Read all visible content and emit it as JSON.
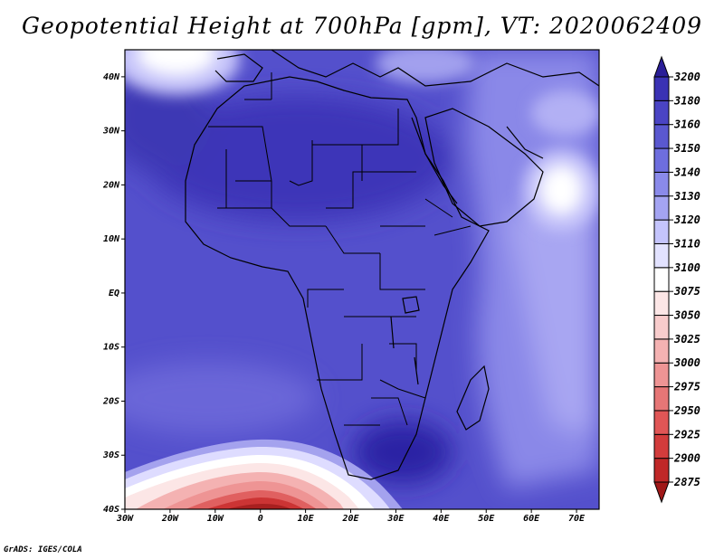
{
  "title": "Geopotential Height at 700hPa [gpm], VT: 2020062409",
  "credit": "GrADS: IGES/COLA",
  "chart_data": {
    "type": "heatmap",
    "variable": "Geopotential Height",
    "level": "700hPa",
    "units": "gpm",
    "valid_time": "2020062409",
    "lon_range": [
      -30,
      75
    ],
    "lat_range": [
      -40,
      45
    ],
    "x_ticks": [
      "30W",
      "20W",
      "10W",
      "0",
      "10E",
      "20E",
      "30E",
      "40E",
      "50E",
      "60E",
      "70E"
    ],
    "x_tick_values": [
      -30,
      -20,
      -10,
      0,
      10,
      20,
      30,
      40,
      50,
      60,
      70
    ],
    "y_ticks": [
      "40N",
      "30N",
      "20N",
      "10N",
      "EQ",
      "10S",
      "20S",
      "30S",
      "40S"
    ],
    "y_tick_values": [
      40,
      30,
      20,
      10,
      0,
      -10,
      -20,
      -30,
      -40
    ],
    "colorbar": {
      "levels": [
        "2875",
        "2900",
        "2925",
        "2950",
        "2975",
        "3000",
        "3025",
        "3050",
        "3075",
        "3100",
        "3110",
        "3120",
        "3130",
        "3140",
        "3150",
        "3160",
        "3180",
        "3200"
      ],
      "colors": [
        "#a01818",
        "#c02828",
        "#d23c3c",
        "#e05656",
        "#e67676",
        "#ee9494",
        "#f4b2b2",
        "#f8cccc",
        "#fce6e6",
        "#ffffff",
        "#e2e2ff",
        "#c4c4fc",
        "#a4a4f2",
        "#8a8aea",
        "#6e6ede",
        "#5a58d0",
        "#4a44c4",
        "#3a32b4",
        "#2a1e98"
      ]
    }
  }
}
